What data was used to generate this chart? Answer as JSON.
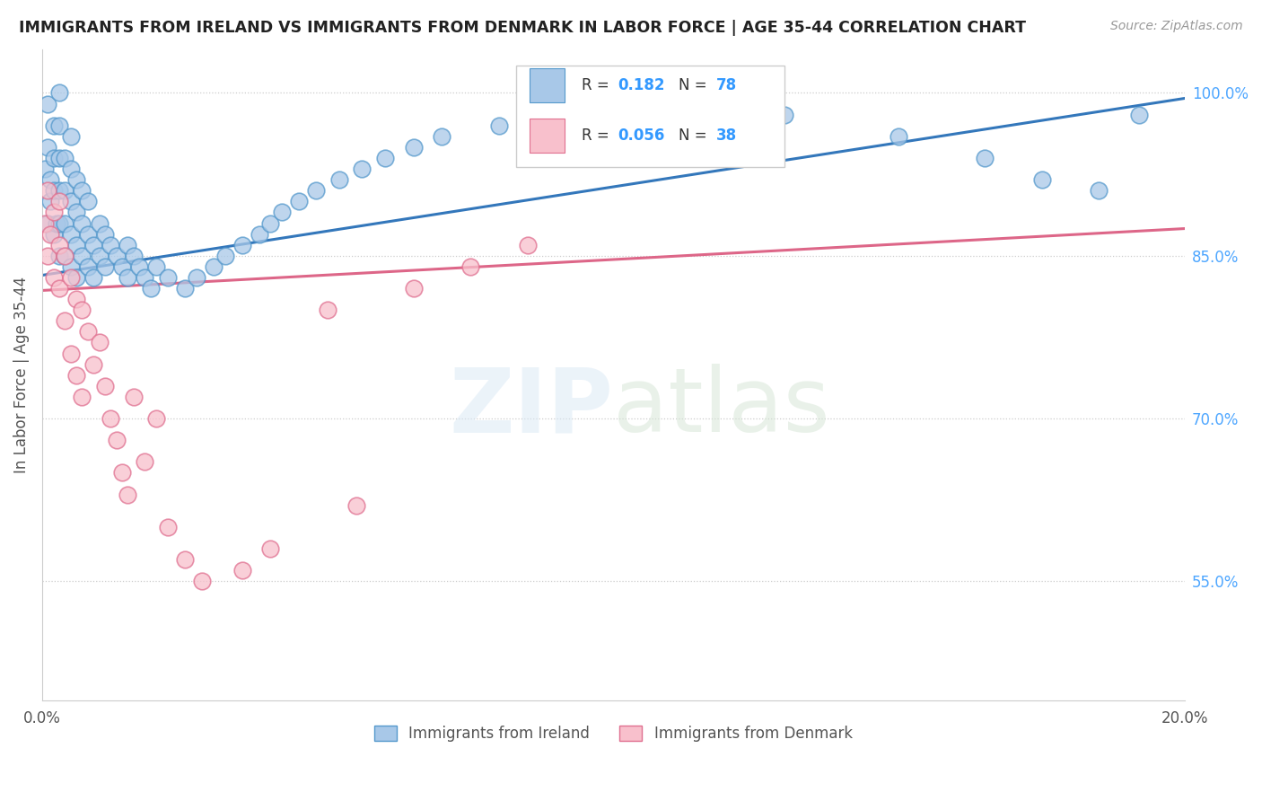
{
  "title": "IMMIGRANTS FROM IRELAND VS IMMIGRANTS FROM DENMARK IN LABOR FORCE | AGE 35-44 CORRELATION CHART",
  "source": "Source: ZipAtlas.com",
  "ylabel": "In Labor Force | Age 35-44",
  "xlim": [
    0.0,
    0.2
  ],
  "ylim": [
    0.44,
    1.04
  ],
  "ytick_positions": [
    0.55,
    0.7,
    0.85,
    1.0
  ],
  "ytick_labels": [
    "55.0%",
    "70.0%",
    "85.0%",
    "100.0%"
  ],
  "ireland_color": "#a8c8e8",
  "ireland_edge": "#5599cc",
  "denmark_color": "#f8c0cc",
  "denmark_edge": "#e07090",
  "R_ireland": 0.182,
  "N_ireland": 78,
  "R_denmark": 0.056,
  "N_denmark": 38,
  "ireland_line_color": "#3377bb",
  "denmark_line_color": "#dd6688",
  "legend_label_ireland": "Immigrants from Ireland",
  "legend_label_denmark": "Immigrants from Denmark",
  "ireland_x": [
    0.0005,
    0.001,
    0.001,
    0.001,
    0.0015,
    0.0015,
    0.002,
    0.002,
    0.002,
    0.002,
    0.0025,
    0.003,
    0.003,
    0.003,
    0.003,
    0.003,
    0.003,
    0.004,
    0.004,
    0.004,
    0.004,
    0.005,
    0.005,
    0.005,
    0.005,
    0.005,
    0.006,
    0.006,
    0.006,
    0.006,
    0.007,
    0.007,
    0.007,
    0.008,
    0.008,
    0.008,
    0.009,
    0.009,
    0.01,
    0.01,
    0.011,
    0.011,
    0.012,
    0.013,
    0.014,
    0.015,
    0.015,
    0.016,
    0.017,
    0.018,
    0.019,
    0.02,
    0.022,
    0.025,
    0.027,
    0.03,
    0.032,
    0.035,
    0.038,
    0.04,
    0.042,
    0.045,
    0.048,
    0.052,
    0.056,
    0.06,
    0.065,
    0.07,
    0.08,
    0.09,
    0.1,
    0.11,
    0.13,
    0.15,
    0.165,
    0.175,
    0.185,
    0.192
  ],
  "ireland_y": [
    0.93,
    0.88,
    0.95,
    0.99,
    0.9,
    0.92,
    0.87,
    0.91,
    0.94,
    0.97,
    0.88,
    0.85,
    0.88,
    0.91,
    0.94,
    0.97,
    1.0,
    0.85,
    0.88,
    0.91,
    0.94,
    0.84,
    0.87,
    0.9,
    0.93,
    0.96,
    0.83,
    0.86,
    0.89,
    0.92,
    0.85,
    0.88,
    0.91,
    0.84,
    0.87,
    0.9,
    0.83,
    0.86,
    0.85,
    0.88,
    0.84,
    0.87,
    0.86,
    0.85,
    0.84,
    0.83,
    0.86,
    0.85,
    0.84,
    0.83,
    0.82,
    0.84,
    0.83,
    0.82,
    0.83,
    0.84,
    0.85,
    0.86,
    0.87,
    0.88,
    0.89,
    0.9,
    0.91,
    0.92,
    0.93,
    0.94,
    0.95,
    0.96,
    0.97,
    0.98,
    0.99,
    1.0,
    0.98,
    0.96,
    0.94,
    0.92,
    0.91,
    0.98
  ],
  "denmark_x": [
    0.0005,
    0.001,
    0.001,
    0.0015,
    0.002,
    0.002,
    0.003,
    0.003,
    0.003,
    0.004,
    0.004,
    0.005,
    0.005,
    0.006,
    0.006,
    0.007,
    0.007,
    0.008,
    0.009,
    0.01,
    0.011,
    0.012,
    0.013,
    0.014,
    0.015,
    0.016,
    0.018,
    0.02,
    0.022,
    0.025,
    0.028,
    0.035,
    0.04,
    0.05,
    0.055,
    0.065,
    0.075,
    0.085
  ],
  "denmark_y": [
    0.88,
    0.85,
    0.91,
    0.87,
    0.83,
    0.89,
    0.86,
    0.82,
    0.9,
    0.85,
    0.79,
    0.83,
    0.76,
    0.81,
    0.74,
    0.8,
    0.72,
    0.78,
    0.75,
    0.77,
    0.73,
    0.7,
    0.68,
    0.65,
    0.63,
    0.72,
    0.66,
    0.7,
    0.6,
    0.57,
    0.55,
    0.56,
    0.58,
    0.8,
    0.62,
    0.82,
    0.84,
    0.86
  ]
}
